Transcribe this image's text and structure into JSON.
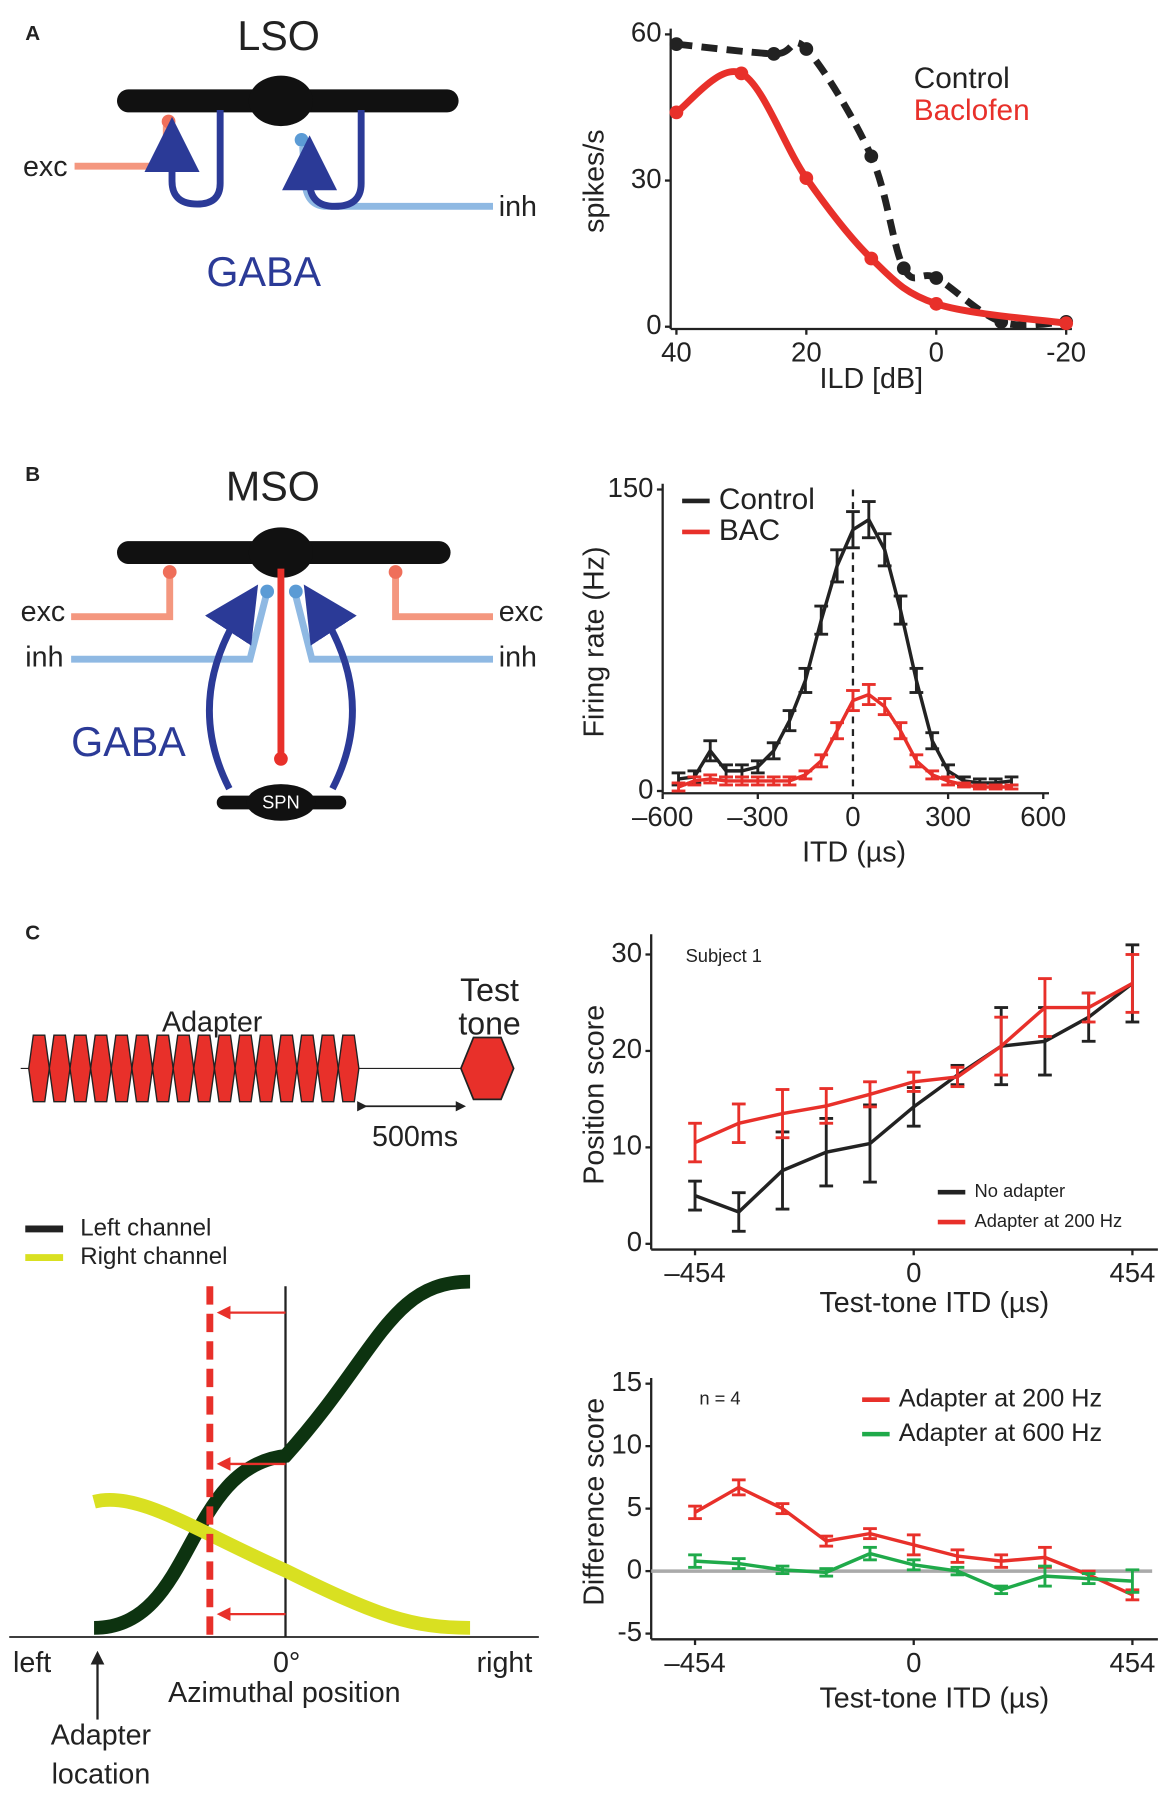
{
  "diagrams": {
    "A": {
      "label": "A",
      "title": "LSO",
      "exc": "exc",
      "inh": "inh",
      "gaba": "GABA"
    },
    "B": {
      "label": "B",
      "title": "MSO",
      "exc_left": "exc",
      "inh_left": "inh",
      "exc_right": "exc",
      "inh_right": "inh",
      "gaba": "GABA",
      "spn": "SPN"
    },
    "C": {
      "label": "C",
      "adapter": "Adapter",
      "test_tone": [
        "Test",
        "tone"
      ],
      "interval": "500ms",
      "left_channel": "Left channel",
      "right_channel": "Right channel",
      "left": "left",
      "zero": "0°",
      "right": "right",
      "axis": "Azimuthal position",
      "adapter_location": [
        "Adapter",
        "location"
      ]
    }
  },
  "chart_data": [
    {
      "type": "line",
      "xlabel": "ILD [dB]",
      "ylabel": "spikes/s",
      "xlim": [
        40,
        -20
      ],
      "xticks": [
        40,
        20,
        0,
        -20
      ],
      "ylim": [
        0,
        60
      ],
      "yticks": [
        0,
        30,
        60
      ],
      "series": [
        {
          "name": "Control",
          "color": "#222222",
          "line_style": "dashed",
          "x": [
            40,
            25,
            20,
            10,
            5,
            0,
            -10,
            -20
          ],
          "values": [
            58,
            56,
            57,
            35,
            12,
            10,
            1,
            1
          ]
        },
        {
          "name": "Baclofen",
          "color": "#e8302a",
          "line_style": "solid",
          "x": [
            40,
            30,
            20,
            10,
            0,
            -20
          ],
          "values": [
            44,
            52,
            30.5,
            14,
            4.7,
            0.7
          ]
        }
      ]
    },
    {
      "type": "errorbar",
      "xlabel": "ITD (µs)",
      "ylabel": "Firing rate (Hz)",
      "xlim": [
        -600,
        600
      ],
      "xticks": [
        {
          "value": -600,
          "label": "–600"
        },
        {
          "value": -300,
          "label": "–300"
        },
        0,
        300,
        600
      ],
      "ylim": [
        0,
        150
      ],
      "yticks": [
        0,
        150
      ],
      "x": [
        -550,
        -500,
        -450,
        -400,
        -350,
        -300,
        -250,
        -200,
        -150,
        -100,
        -50,
        0,
        50,
        100,
        150,
        200,
        250,
        300,
        350,
        400,
        450,
        500
      ],
      "series": [
        {
          "name": "Control",
          "color": "#222222",
          "values": [
            6,
            7,
            20,
            10,
            10,
            12,
            20,
            35,
            55,
            85,
            112,
            130,
            135,
            120,
            90,
            55,
            25,
            10,
            5,
            4,
            4,
            5
          ],
          "errors": [
            3,
            3,
            5,
            3,
            3,
            3,
            4,
            5,
            6,
            7,
            8,
            9,
            9,
            8,
            7,
            6,
            4,
            3,
            2,
            2,
            2,
            2
          ]
        },
        {
          "name": "BAC",
          "color": "#e8302a",
          "values": [
            2,
            5,
            6,
            5,
            5,
            5,
            5,
            5,
            8,
            15,
            30,
            45,
            48,
            42,
            30,
            15,
            8,
            5,
            3,
            2,
            2,
            2
          ],
          "errors": [
            2,
            2,
            2,
            2,
            2,
            2,
            2,
            2,
            2,
            3,
            4,
            5,
            5,
            4,
            4,
            3,
            2,
            2,
            1,
            1,
            1,
            1
          ]
        }
      ]
    },
    {
      "type": "errorbar",
      "xlabel": "Test-tone ITD (µs)",
      "ylabel": "Position score",
      "annotation": "Subject 1",
      "xlim": [
        -545,
        495
      ],
      "xticks": [
        {
          "value": -454,
          "label": "–454"
        },
        0,
        454
      ],
      "ylim": [
        0,
        31.5
      ],
      "yticks": [
        0,
        10,
        20,
        30
      ],
      "x": [
        -454,
        -363.2,
        -272.4,
        -181.6,
        -90.8,
        0,
        90.8,
        181.6,
        272.4,
        363.2,
        454
      ],
      "series": [
        {
          "name": "No adapter",
          "color": "#222222",
          "values": [
            5,
            3.3,
            7.6,
            9.5,
            10.4,
            14.2,
            17.5,
            20.5,
            21,
            23.5,
            27
          ],
          "errors": [
            1.5,
            2,
            4,
            3.5,
            4,
            2,
            1,
            4,
            3.5,
            2.5,
            4
          ]
        },
        {
          "name": "Adapter at 200 Hz",
          "color": "#e8302a",
          "values": [
            10.5,
            12.5,
            13.5,
            14.3,
            15.5,
            16.8,
            17.3,
            20.5,
            24.5,
            24.5,
            27
          ],
          "errors": [
            2,
            2,
            2.5,
            1.8,
            1.3,
            1,
            1,
            3,
            3,
            1.5,
            3
          ]
        }
      ]
    },
    {
      "type": "errorbar",
      "xlabel": "Test-tone ITD (µs)",
      "ylabel": "Difference score",
      "annotation": "n = 4",
      "xlim": [
        -545,
        495
      ],
      "xticks": [
        {
          "value": -454,
          "label": "–454"
        },
        0,
        454
      ],
      "ylim": [
        -5,
        15
      ],
      "yticks": [
        -5,
        0,
        5,
        10,
        15
      ],
      "x": [
        -454,
        -363.2,
        -272.4,
        -181.6,
        -90.8,
        0,
        90.8,
        181.6,
        272.4,
        363.2,
        454
      ],
      "series": [
        {
          "name": "Adapter at 200 Hz",
          "color": "#e8302a",
          "values": [
            4.7,
            6.7,
            5,
            2.4,
            3,
            2.1,
            1.2,
            0.8,
            1.1,
            -0.3,
            -1.9
          ],
          "errors": [
            0.5,
            0.6,
            0.4,
            0.4,
            0.4,
            0.8,
            0.5,
            0.5,
            0.8,
            0.3,
            0.4
          ]
        },
        {
          "name": "Adapter at 600 Hz",
          "color": "#1faa4a",
          "values": [
            0.8,
            0.6,
            0.1,
            -0.1,
            1.4,
            0.5,
            0.0,
            -1.5,
            -0.4,
            -0.6,
            -0.8
          ],
          "errors": [
            0.5,
            0.4,
            0.3,
            0.3,
            0.5,
            0.4,
            0.3,
            0.3,
            0.8,
            0.4,
            0.9
          ]
        }
      ]
    }
  ]
}
